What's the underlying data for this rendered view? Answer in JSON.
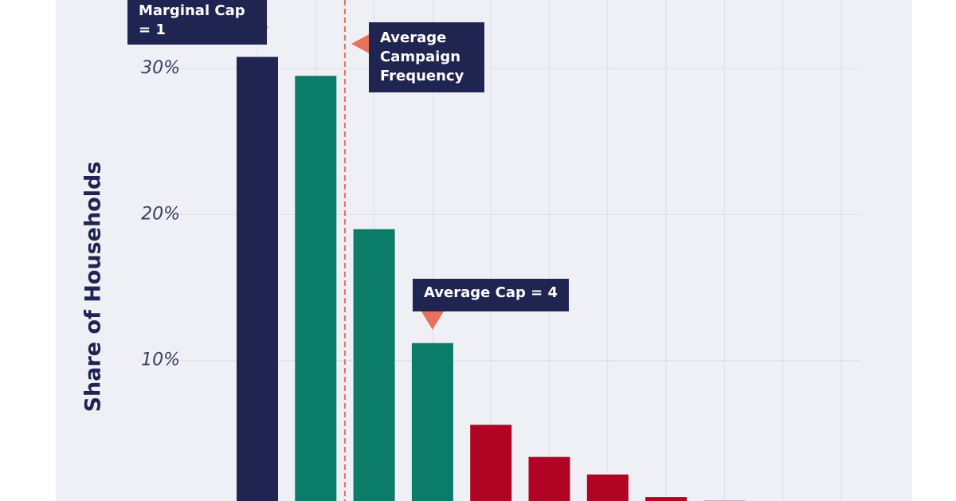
{
  "chart_data": {
    "type": "bar",
    "y_label": "Share of Households",
    "categories": [
      null,
      null,
      null,
      null,
      null,
      null,
      null,
      null,
      null,
      null,
      null
    ],
    "values": [
      30.8,
      29.5,
      19.0,
      11.2,
      5.6,
      3.4,
      2.2,
      0.65,
      0.4,
      null,
      null
    ],
    "colors": [
      "#1f2451",
      "#0c7c6a",
      "#0c7c6a",
      "#0c7c6a",
      "#b10324",
      "#b10324",
      "#b10324",
      "#b10324",
      "#b10324",
      null,
      null
    ],
    "ylim": [
      0,
      35
    ],
    "yticks": [
      {
        "value": 10,
        "label": "10%"
      },
      {
        "value": 20,
        "label": "20%"
      },
      {
        "value": 30,
        "label": "30%"
      }
    ],
    "grid": true,
    "annotations": [
      {
        "text": "Marginal Cap = 1"
      },
      {
        "text": "Average Campaign Frequency",
        "x": 2.5
      },
      {
        "text": "Average Cap = 4"
      }
    ]
  }
}
